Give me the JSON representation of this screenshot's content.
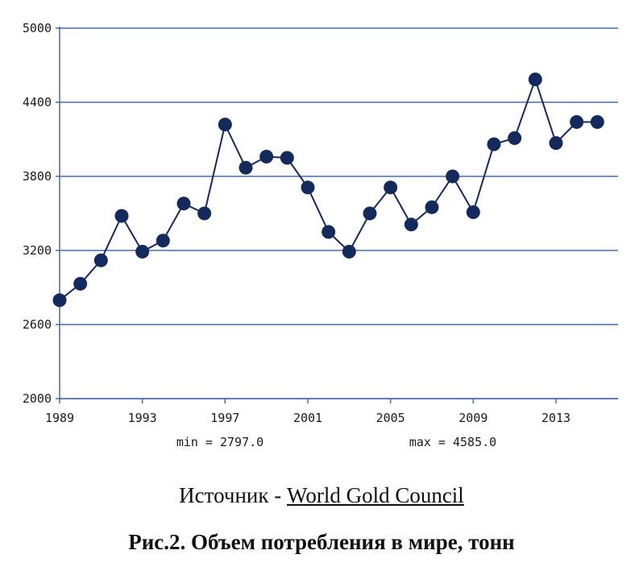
{
  "chart_data": {
    "type": "line",
    "x": [
      1989,
      1990,
      1991,
      1992,
      1993,
      1994,
      1995,
      1996,
      1997,
      1998,
      1999,
      2000,
      2001,
      2002,
      2003,
      2004,
      2005,
      2006,
      2007,
      2008,
      2009,
      2010,
      2011,
      2012,
      2013,
      2014,
      2015
    ],
    "series": [
      {
        "values": [
          2797,
          2930,
          3120,
          3480,
          3190,
          3280,
          3580,
          3500,
          4220,
          3870,
          3960,
          3950,
          3710,
          3350,
          3190,
          3500,
          3710,
          3410,
          3550,
          3800,
          3510,
          4060,
          4110,
          4585,
          4070,
          4240,
          4240
        ]
      }
    ],
    "xticks": [
      "1989",
      "1993",
      "1997",
      "2001",
      "2005",
      "2009",
      "2013"
    ],
    "yticks": [
      "2000",
      "2600",
      "3200",
      "3800",
      "4400",
      "5000"
    ],
    "xlim": [
      1989,
      2016
    ],
    "ylim": [
      2000,
      5000
    ],
    "grid": true,
    "min_label": "min = 2797.0",
    "max_label": "max = 4585.0",
    "line_color": "#142a5c",
    "grid_color": "#4a6aa8"
  },
  "source": {
    "prefix": "Источник - ",
    "link_text": "World Gold Council"
  },
  "caption": "Рис.2. Объем потребления в мире, тонн"
}
